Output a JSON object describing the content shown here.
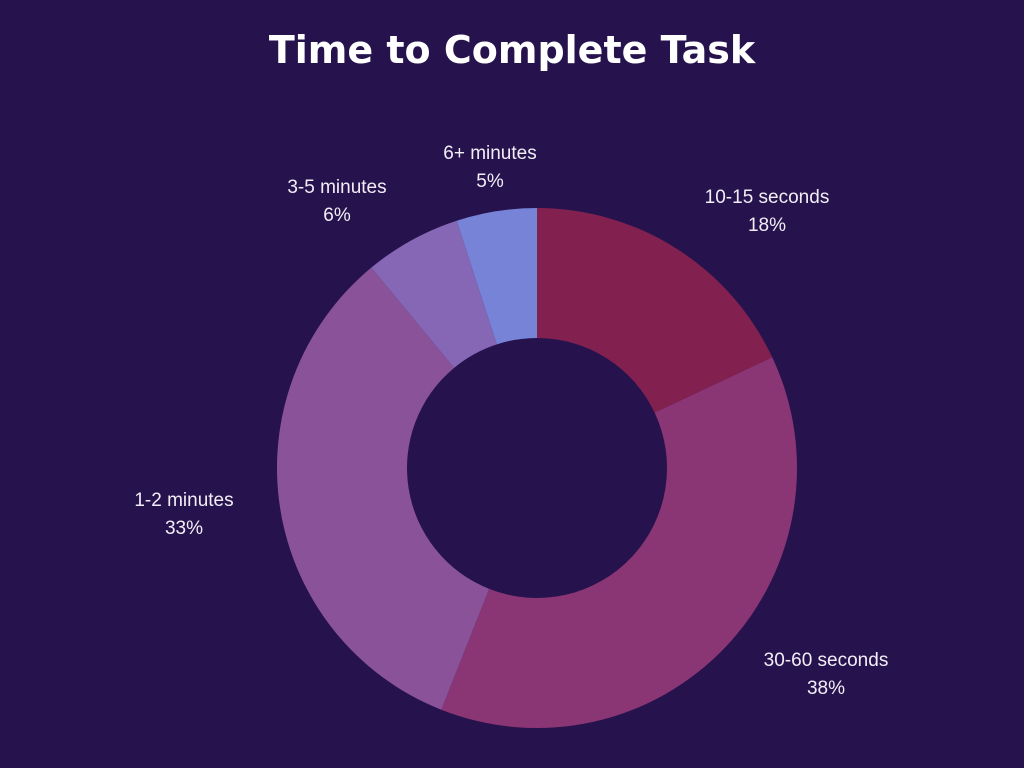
{
  "chart_data": {
    "type": "pie",
    "subtype": "donut",
    "title": "Time to Complete Task",
    "categories": [
      "10-15 seconds",
      "30-60 seconds",
      "1-2 minutes",
      "3-5 minutes",
      "6+ minutes"
    ],
    "values": [
      18,
      38,
      33,
      6,
      5
    ],
    "labels": [
      "18%",
      "38%",
      "33%",
      "6%",
      "5%"
    ],
    "colors": [
      "#82204f",
      "#8a3574",
      "#8a5399",
      "#8567b5",
      "#7783d6"
    ],
    "background": "#26134d",
    "legend": "none (data labels outside slices)"
  },
  "slices": [
    {
      "name": "10-15 seconds",
      "pct": "18%"
    },
    {
      "name": "30-60 seconds",
      "pct": "38%"
    },
    {
      "name": "1-2 minutes",
      "pct": "33%"
    },
    {
      "name": "3-5 minutes",
      "pct": "6%"
    },
    {
      "name": "6+ minutes",
      "pct": "5%"
    }
  ]
}
